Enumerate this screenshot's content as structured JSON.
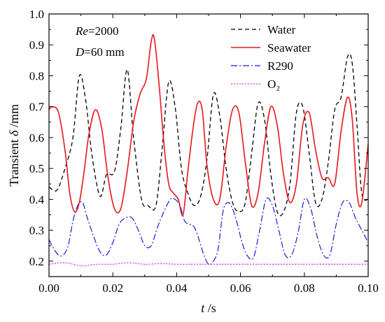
{
  "chart_data": {
    "type": "line",
    "xlabel_var": "t",
    "xlabel_unit": " /s",
    "ylabel_prefix": "Transient ",
    "ylabel_var": "δ",
    "ylabel_unit": " /mm",
    "xlim": [
      0.0,
      0.1
    ],
    "ylim": [
      0.15,
      1.0
    ],
    "xticks": [
      0.0,
      0.02,
      0.04,
      0.06,
      0.08,
      0.1
    ],
    "xtick_labels": [
      "0.00",
      "0.02",
      "0.04",
      "0.06",
      "0.08",
      "0.10"
    ],
    "yticks": [
      0.2,
      0.3,
      0.4,
      0.5,
      0.6,
      0.7,
      0.8,
      0.9,
      1.0
    ],
    "ytick_labels": [
      "0.2",
      "0.3",
      "0.4",
      "0.5",
      "0.6",
      "0.7",
      "0.8",
      "0.9",
      "1.0"
    ],
    "annotations": {
      "re_var": "Re",
      "re_value": "=2000",
      "d_var": "D",
      "d_value": "=60 mm"
    },
    "legend_position": "top-right",
    "series": [
      {
        "name": "Water",
        "color": "#000000",
        "dash": "dashed",
        "x": [
          0.0,
          0.0025,
          0.005,
          0.0075,
          0.0095,
          0.0115,
          0.0135,
          0.016,
          0.018,
          0.0205,
          0.0225,
          0.0245,
          0.0265,
          0.029,
          0.031,
          0.0335,
          0.0355,
          0.0375,
          0.0395,
          0.0415,
          0.0435,
          0.0455,
          0.0475,
          0.0495,
          0.0515,
          0.0535,
          0.0555,
          0.0575,
          0.0595,
          0.0615,
          0.0635,
          0.0655,
          0.0675,
          0.0695,
          0.0715,
          0.0735,
          0.0755,
          0.0775,
          0.0795,
          0.0815,
          0.0835,
          0.0855,
          0.0875,
          0.0895,
          0.0915,
          0.0935,
          0.095,
          0.0965,
          0.098,
          0.1
        ],
        "y": [
          0.44,
          0.43,
          0.5,
          0.6,
          0.8,
          0.72,
          0.54,
          0.41,
          0.48,
          0.49,
          0.63,
          0.82,
          0.6,
          0.4,
          0.38,
          0.38,
          0.57,
          0.78,
          0.7,
          0.5,
          0.42,
          0.38,
          0.41,
          0.53,
          0.74,
          0.67,
          0.5,
          0.39,
          0.36,
          0.39,
          0.55,
          0.71,
          0.66,
          0.48,
          0.36,
          0.36,
          0.45,
          0.68,
          0.7,
          0.55,
          0.39,
          0.4,
          0.52,
          0.69,
          0.73,
          0.86,
          0.84,
          0.64,
          0.42,
          0.4
        ]
      },
      {
        "name": "Seawater",
        "color": "#e8161b",
        "dash": "solid",
        "x": [
          0.0,
          0.001,
          0.003,
          0.005,
          0.0065,
          0.008,
          0.0095,
          0.011,
          0.0125,
          0.0145,
          0.0165,
          0.0185,
          0.0205,
          0.0225,
          0.0245,
          0.0265,
          0.0285,
          0.0305,
          0.032,
          0.033,
          0.0345,
          0.036,
          0.0375,
          0.039,
          0.0405,
          0.042,
          0.0435,
          0.045,
          0.0465,
          0.048,
          0.0495,
          0.0515,
          0.0535,
          0.0555,
          0.0575,
          0.0595,
          0.0615,
          0.0635,
          0.0655,
          0.0675,
          0.0695,
          0.0715,
          0.0735,
          0.0755,
          0.0775,
          0.0795,
          0.0815,
          0.0835,
          0.0855,
          0.0875,
          0.0895,
          0.0915,
          0.0935,
          0.095,
          0.0965,
          0.098,
          0.1
        ],
        "y": [
          0.69,
          0.7,
          0.68,
          0.56,
          0.42,
          0.36,
          0.39,
          0.49,
          0.61,
          0.69,
          0.63,
          0.47,
          0.37,
          0.37,
          0.49,
          0.65,
          0.74,
          0.79,
          0.91,
          0.92,
          0.77,
          0.58,
          0.45,
          0.42,
          0.4,
          0.35,
          0.49,
          0.62,
          0.71,
          0.69,
          0.51,
          0.4,
          0.4,
          0.57,
          0.69,
          0.68,
          0.52,
          0.38,
          0.42,
          0.58,
          0.7,
          0.64,
          0.48,
          0.39,
          0.45,
          0.64,
          0.68,
          0.56,
          0.47,
          0.47,
          0.45,
          0.62,
          0.73,
          0.66,
          0.42,
          0.39,
          0.58
        ]
      },
      {
        "name": "R290",
        "color": "#1a1adb",
        "dash": "dashdot",
        "x": [
          0.0,
          0.0015,
          0.003,
          0.0045,
          0.006,
          0.0075,
          0.009,
          0.0105,
          0.012,
          0.014,
          0.016,
          0.018,
          0.02,
          0.022,
          0.024,
          0.026,
          0.028,
          0.03,
          0.032,
          0.034,
          0.036,
          0.038,
          0.0395,
          0.041,
          0.0425,
          0.044,
          0.0455,
          0.047,
          0.0485,
          0.05,
          0.0515,
          0.053,
          0.0545,
          0.056,
          0.0575,
          0.059,
          0.0605,
          0.062,
          0.064,
          0.066,
          0.068,
          0.07,
          0.072,
          0.074,
          0.076,
          0.078,
          0.08,
          0.082,
          0.084,
          0.086,
          0.088,
          0.09,
          0.092,
          0.094,
          0.096,
          0.098,
          0.1
        ],
        "y": [
          0.27,
          0.24,
          0.22,
          0.22,
          0.25,
          0.33,
          0.38,
          0.39,
          0.34,
          0.28,
          0.23,
          0.22,
          0.26,
          0.32,
          0.34,
          0.34,
          0.3,
          0.25,
          0.25,
          0.31,
          0.36,
          0.4,
          0.4,
          0.38,
          0.33,
          0.32,
          0.31,
          0.27,
          0.22,
          0.19,
          0.2,
          0.24,
          0.36,
          0.39,
          0.37,
          0.32,
          0.26,
          0.22,
          0.21,
          0.3,
          0.4,
          0.38,
          0.3,
          0.22,
          0.22,
          0.29,
          0.4,
          0.37,
          0.28,
          0.22,
          0.22,
          0.32,
          0.39,
          0.39,
          0.34,
          0.3,
          0.26
        ]
      },
      {
        "name": "O₂",
        "color": "#e82ee8",
        "dash": "dotted",
        "x": [
          0.0,
          0.005,
          0.01,
          0.015,
          0.02,
          0.025,
          0.03,
          0.035,
          0.04,
          0.045,
          0.05,
          0.055,
          0.06,
          0.065,
          0.07,
          0.075,
          0.08,
          0.085,
          0.09,
          0.095,
          0.1
        ],
        "y": [
          0.19,
          0.195,
          0.185,
          0.19,
          0.19,
          0.195,
          0.19,
          0.192,
          0.19,
          0.19,
          0.19,
          0.19,
          0.19,
          0.19,
          0.19,
          0.19,
          0.19,
          0.19,
          0.19,
          0.19,
          0.19
        ]
      }
    ]
  }
}
